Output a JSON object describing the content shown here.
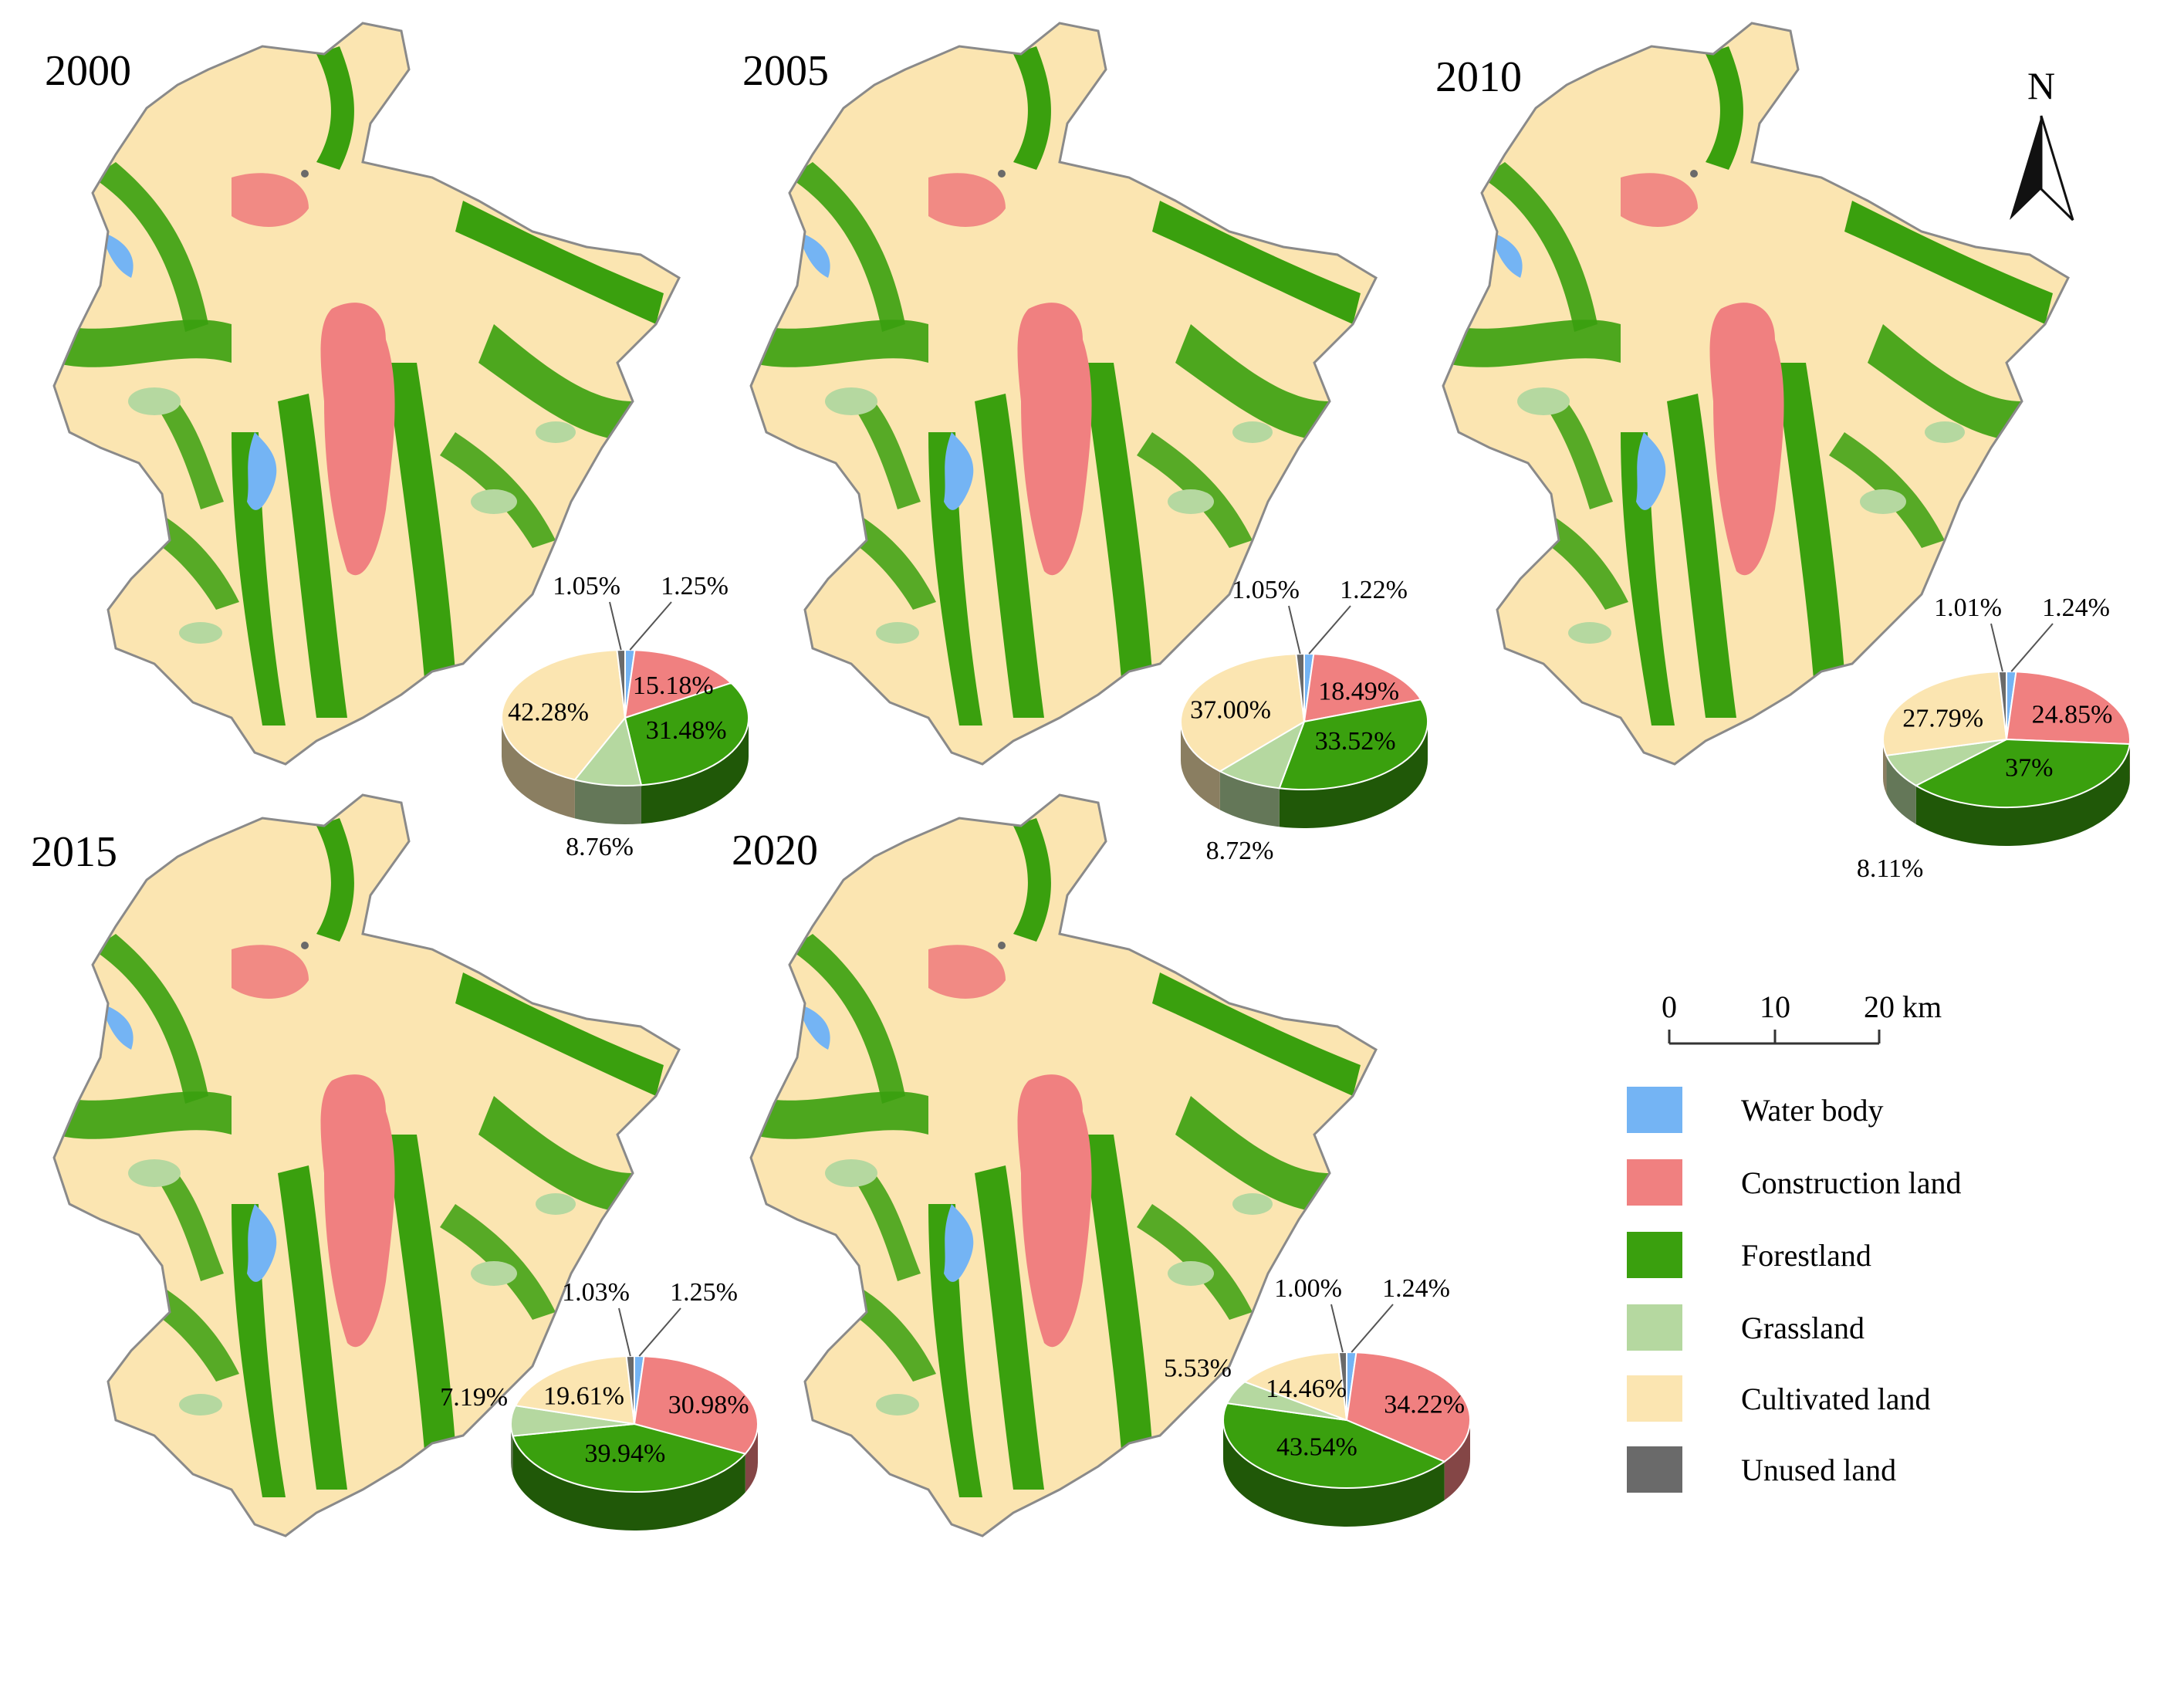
{
  "colors": {
    "water": "#74b4f4",
    "construction": "#f08080",
    "forest": "#3aa00e",
    "grass": "#b5d8a0",
    "cultivated": "#fbe5b1",
    "unused": "#6a6a6a",
    "boundary": "#8a8a8a"
  },
  "north_label": "N",
  "scale": {
    "labels": [
      "0",
      "10",
      "20 km"
    ]
  },
  "legend": [
    {
      "key": "water",
      "label": "Water body"
    },
    {
      "key": "construction",
      "label": "Construction land"
    },
    {
      "key": "forest",
      "label": "Forestland"
    },
    {
      "key": "grass",
      "label": "Grassland"
    },
    {
      "key": "cultivated",
      "label": "Cultivated land"
    },
    {
      "key": "unused",
      "label": "Unused land"
    }
  ],
  "panels": [
    {
      "year": "2000",
      "pie": {
        "water": 1.25,
        "construction": 15.18,
        "forest": 31.48,
        "grass": 8.76,
        "cultivated": 42.28,
        "unused": 1.05
      },
      "labels": {
        "water": "1.25%",
        "construction": "15.18%",
        "forest": "31.48%",
        "grass": "8.76%",
        "cultivated": "42.28%",
        "unused": "1.05%"
      }
    },
    {
      "year": "2005",
      "pie": {
        "water": 1.22,
        "construction": 18.49,
        "forest": 33.52,
        "grass": 8.72,
        "cultivated": 37.0,
        "unused": 1.05
      },
      "labels": {
        "water": "1.22%",
        "construction": "18.49%",
        "forest": "33.52%",
        "grass": "8.72%",
        "cultivated": "37.00%",
        "unused": "1.05%"
      }
    },
    {
      "year": "2010",
      "pie": {
        "water": 1.24,
        "construction": 24.85,
        "forest": 37.0,
        "grass": 8.11,
        "cultivated": 27.79,
        "unused": 1.01
      },
      "labels": {
        "water": "1.24%",
        "construction": "24.85%",
        "forest": "37%",
        "grass": "8.11%",
        "cultivated": "27.79%",
        "unused": "1.01%"
      }
    },
    {
      "year": "2015",
      "pie": {
        "water": 1.25,
        "construction": 30.98,
        "forest": 39.94,
        "grass": 7.19,
        "cultivated": 19.61,
        "unused": 1.03
      },
      "labels": {
        "water": "1.25%",
        "construction": "30.98%",
        "forest": "39.94%",
        "grass": "7.19%",
        "cultivated": "19.61%",
        "unused": "1.03%"
      }
    },
    {
      "year": "2020",
      "pie": {
        "water": 1.24,
        "construction": 34.22,
        "forest": 43.54,
        "grass": 5.53,
        "cultivated": 14.46,
        "unused": 1.0
      },
      "labels": {
        "water": "1.24%",
        "construction": "34.22%",
        "forest": "43.54%",
        "grass": "5.53%",
        "cultivated": "14.46%",
        "unused": "1.00%"
      }
    }
  ]
}
